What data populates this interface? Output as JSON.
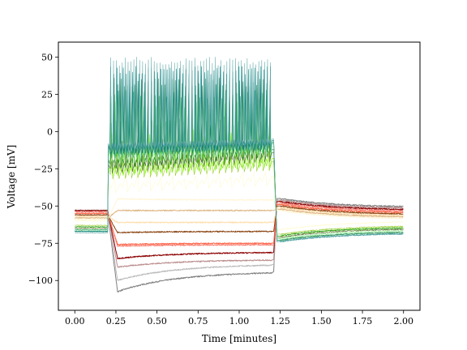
{
  "chart_data": {
    "type": "line",
    "title": "",
    "xlabel": "Time [minutes]",
    "ylabel": "Voltage [mV]",
    "xlim": [
      -0.1,
      2.1
    ],
    "ylim": [
      -120,
      60
    ],
    "xticks": [
      0.0,
      0.25,
      0.5,
      0.75,
      1.0,
      1.25,
      1.5,
      1.75,
      2.0
    ],
    "xtick_labels": [
      "0.00",
      "0.25",
      "0.50",
      "0.75",
      "1.00",
      "1.25",
      "1.50",
      "1.75",
      "2.00"
    ],
    "yticks": [
      -100,
      -75,
      -50,
      -25,
      0,
      25,
      50
    ],
    "ytick_labels": [
      "−100",
      "−75",
      "−50",
      "−25",
      "0",
      "25",
      "50"
    ],
    "grid": false,
    "legend": "none",
    "stimulus": {
      "on": 0.2,
      "off": 1.2
    },
    "x_range": [
      0.0,
      2.0
    ],
    "series": [
      {
        "color": "#7f7f7f",
        "rest": -53,
        "onset": -110,
        "end": -94,
        "recovery": -51,
        "spiking": false
      },
      {
        "color": "#bbbbbb",
        "rest": -53,
        "onset": -102,
        "end": -89,
        "recovery": -52,
        "spiking": false
      },
      {
        "color": "#bc8f8f",
        "rest": -53,
        "onset": -92,
        "end": -86,
        "recovery": -52,
        "spiking": false
      },
      {
        "color": "#8b0000",
        "rest": -53,
        "onset": -86,
        "end": -81,
        "recovery": -53,
        "spiking": false
      },
      {
        "color": "#fa8072",
        "rest": -54,
        "onset": -77,
        "end": -76,
        "recovery": -54,
        "spiking": false
      },
      {
        "color": "#ff6347",
        "rest": -55,
        "onset": -76,
        "end": -75,
        "recovery": -55,
        "spiking": false
      },
      {
        "color": "#8b4513",
        "rest": -56,
        "onset": -68,
        "end": -67,
        "recovery": -56,
        "spiking": false
      },
      {
        "color": "#ffdead",
        "rest": -57,
        "onset": -61,
        "end": -61,
        "recovery": -57,
        "spiking": false
      },
      {
        "color": "#deb887",
        "rest": -58,
        "onset": -53,
        "end": -53,
        "recovery": -58,
        "spiking": false
      },
      {
        "color": "#fff5d6",
        "rest": -59,
        "onset": -45,
        "end": -46,
        "recovery": -59,
        "spiking": false
      },
      {
        "color": "#fffacd",
        "rest": -60,
        "onset": -35,
        "end": -30,
        "recovery": -60,
        "spiking": true,
        "n_spikes": 14,
        "peak": -26
      },
      {
        "color": "#9acd32",
        "rest": -63,
        "onset": -26,
        "end": -20,
        "recovery": -63,
        "spiking": true,
        "n_spikes": 26,
        "peak": -12
      },
      {
        "color": "#7cfc00",
        "rest": -64,
        "onset": -24,
        "end": -18,
        "recovery": -64,
        "spiking": true,
        "n_spikes": 30,
        "peak": 2
      },
      {
        "color": "#556b2f",
        "rest": -65,
        "onset": -22,
        "end": -14,
        "recovery": -65,
        "spiking": true,
        "n_spikes": 32,
        "peak": -5
      },
      {
        "color": "#228b22",
        "rest": -64,
        "onset": -19,
        "end": -12,
        "recovery": -64,
        "spiking": true,
        "n_spikes": 36,
        "peak": 10
      },
      {
        "color": "#90ee90",
        "rest": -66,
        "onset": -14,
        "end": -10,
        "recovery": -66,
        "spiking": true,
        "n_spikes": 40,
        "peak": 20
      },
      {
        "color": "#3cb371",
        "rest": -66,
        "onset": -12,
        "end": -8,
        "recovery": -67,
        "spiking": true,
        "n_spikes": 44,
        "peak": 28
      },
      {
        "color": "#2e8b57",
        "rest": -67,
        "onset": -10,
        "end": -7,
        "recovery": -67,
        "spiking": true,
        "n_spikes": 48,
        "peak": 36
      },
      {
        "color": "#008080",
        "rest": -67,
        "onset": -9,
        "end": -6,
        "recovery": -68,
        "spiking": true,
        "n_spikes": 52,
        "peak": 44
      },
      {
        "color": "#66aaaa",
        "rest": -68,
        "onset": -8,
        "end": -5,
        "recovery": -68,
        "spiking": true,
        "n_spikes": 56,
        "peak": 50
      }
    ]
  }
}
